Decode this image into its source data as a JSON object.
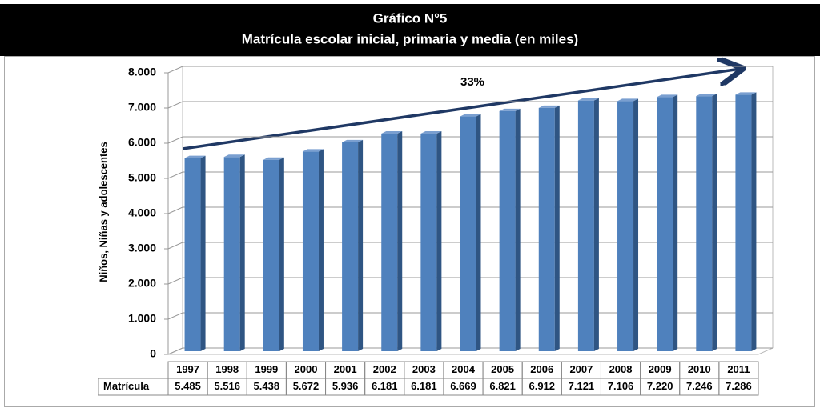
{
  "chart_data": {
    "type": "bar",
    "title": [
      "Gráfico N°5",
      "Matrícula escolar inicial, primaria y media (en miles)"
    ],
    "y_label": "Niños, Niñas y adolescentes",
    "annotation": "33%",
    "categories": [
      "1997",
      "1998",
      "1999",
      "2000",
      "2001",
      "2002",
      "2003",
      "2004",
      "2005",
      "2006",
      "2007",
      "2008",
      "2009",
      "2010",
      "2011"
    ],
    "series": [
      {
        "name": "Matrícula",
        "color": "#4f81bd",
        "values": [
          5485,
          5516,
          5438,
          5672,
          5936,
          6181,
          6181,
          6669,
          6821,
          6912,
          7121,
          7106,
          7220,
          7246,
          7286
        ],
        "value_labels": [
          "5.485",
          "5.516",
          "5.438",
          "5.672",
          "5.936",
          "6.181",
          "6.181",
          "6.669",
          "6.821",
          "6.912",
          "7.121",
          "7.106",
          "7.220",
          "7.246",
          "7.286"
        ]
      }
    ],
    "ylim": [
      0,
      8000
    ],
    "yticks": [
      0,
      {
        "value": 1000,
        "label": "1.000"
      },
      {
        "value": 2000,
        "label": "2.000"
      },
      {
        "value": 3000,
        "label": "3.000"
      },
      {
        "value": 4000,
        "label": "4.000"
      },
      {
        "value": 5000,
        "label": "5.000"
      },
      {
        "value": 6000,
        "label": "6.000"
      },
      {
        "value": 7000,
        "label": "7.000"
      },
      {
        "value": 8000,
        "label": "8.000"
      }
    ],
    "grid": true
  }
}
